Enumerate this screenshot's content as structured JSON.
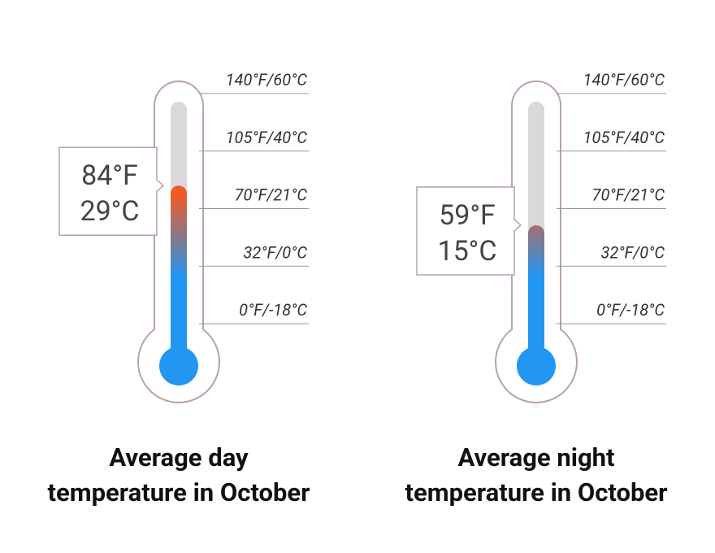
{
  "chart_data": [
    {
      "type": "thermometer",
      "title": [
        "Average day",
        "temperature in October"
      ],
      "values": [
        84,
        29
      ],
      "value_labels": [
        "84°F",
        "29°C"
      ],
      "ylim": [
        0,
        140
      ],
      "yticks": [
        {
          "value": 0,
          "label": "0°F/-18°C"
        },
        {
          "value": 32,
          "label": "32°F/0°C"
        },
        {
          "value": 70,
          "label": "70°F/21°C"
        },
        {
          "value": 105,
          "label": "105°F/40°C"
        },
        {
          "value": 140,
          "label": "140°F/60°C"
        }
      ],
      "colors": [
        "#ee5a24",
        "#2196f3"
      ]
    },
    {
      "type": "thermometer",
      "title": [
        "Average night",
        "temperature in October"
      ],
      "values": [
        59,
        15
      ],
      "value_labels": [
        "59°F",
        "15°C"
      ],
      "ylim": [
        0,
        140
      ],
      "yticks": [
        {
          "value": 0,
          "label": "0°F/-18°C"
        },
        {
          "value": 32,
          "label": "32°F/0°C"
        },
        {
          "value": 70,
          "label": "70°F/21°C"
        },
        {
          "value": 105,
          "label": "105°F/40°C"
        },
        {
          "value": 140,
          "label": "140°F/60°C"
        }
      ],
      "colors": [
        "#ee5a24",
        "#2196f3"
      ]
    }
  ]
}
